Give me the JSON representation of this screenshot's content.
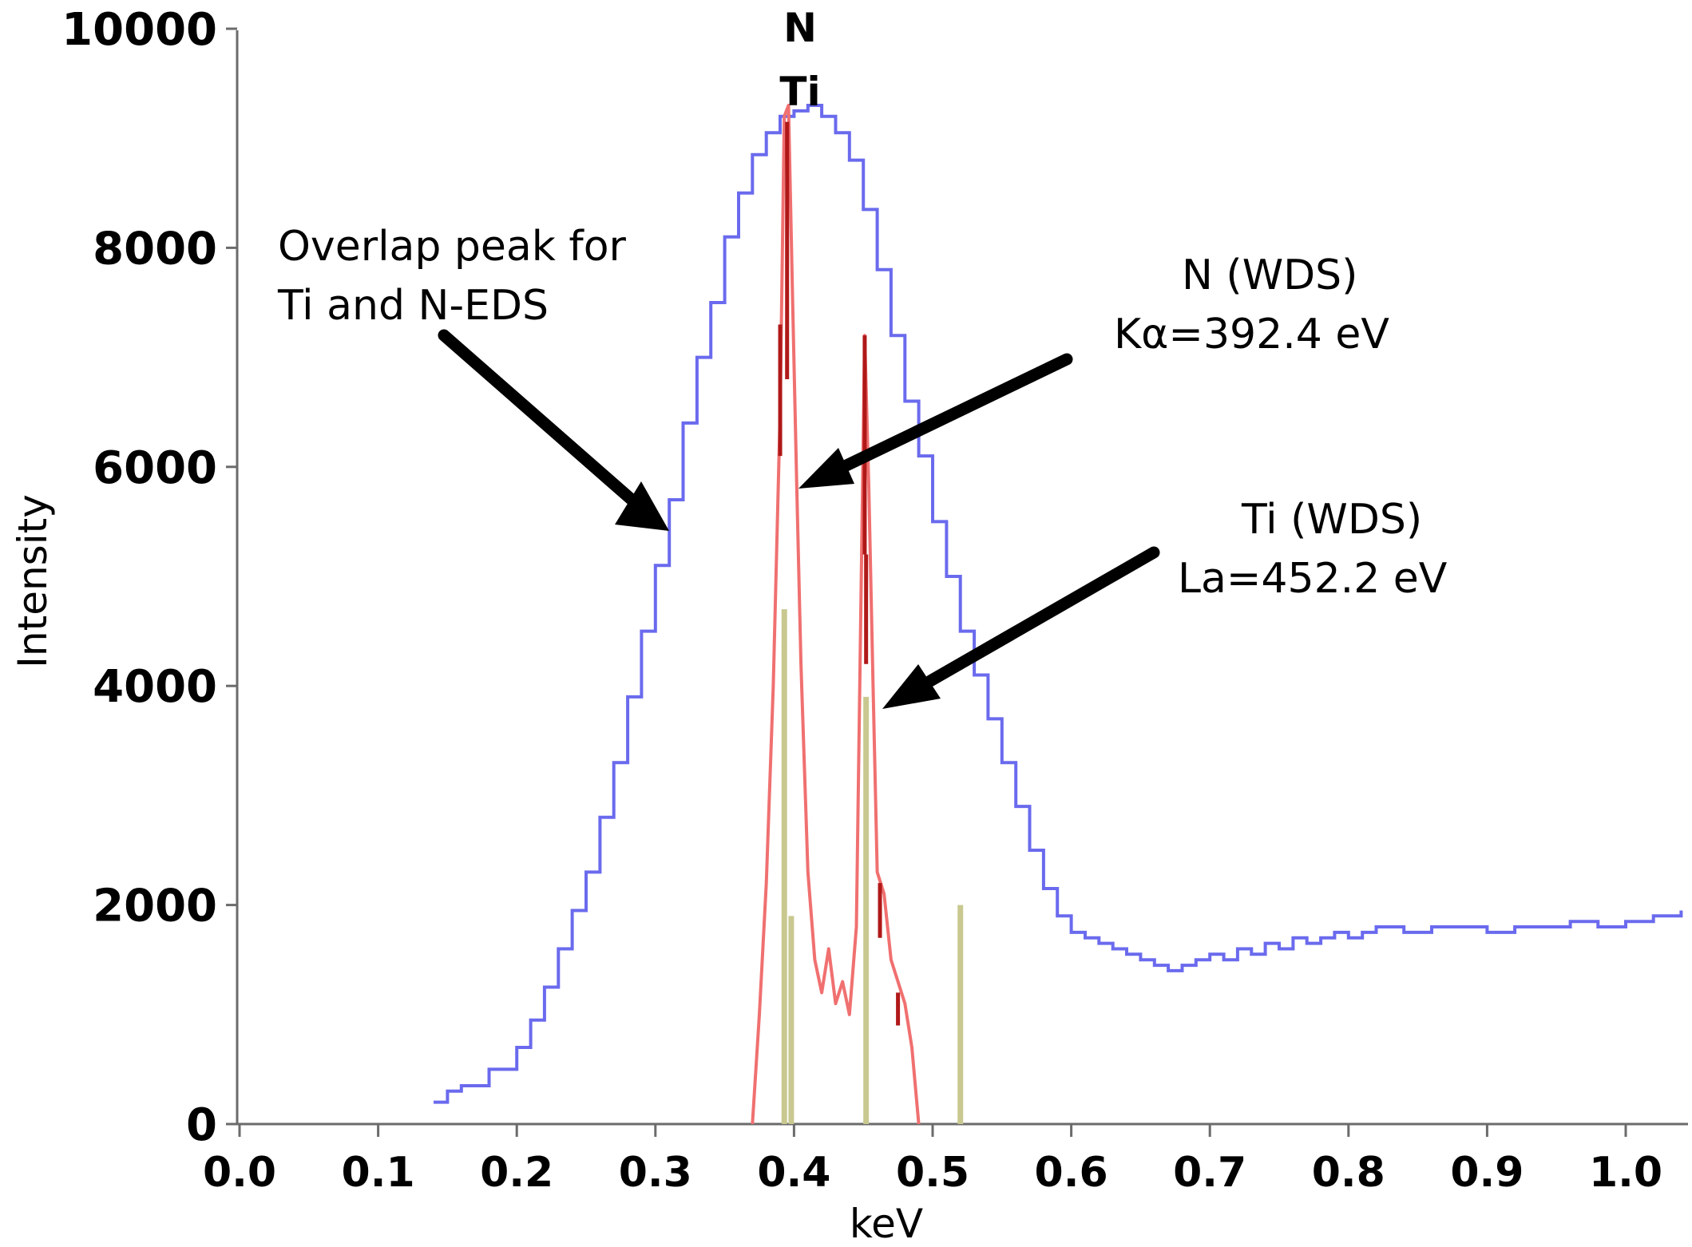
{
  "chart_data": {
    "type": "line",
    "title": "",
    "xlabel": "keV",
    "ylabel": "Intensity",
    "xlim": [
      0.0,
      1.04
    ],
    "ylim": [
      0,
      10000
    ],
    "x_ticks": [
      "0.0",
      "0.1",
      "0.2",
      "0.3",
      "0.4",
      "0.5",
      "0.6",
      "0.7",
      "0.8",
      "0.9",
      "1.0"
    ],
    "y_ticks": [
      "0",
      "2000",
      "4000",
      "6000",
      "8000",
      "10000"
    ],
    "colors": {
      "eds": "#6a6aee",
      "wds": "#f07070",
      "wds_dark": "#b01818",
      "ref_lines": "#c8c890",
      "arrow": "#000000"
    },
    "series": [
      {
        "name": "EDS",
        "x": [
          0.14,
          0.15,
          0.16,
          0.18,
          0.2,
          0.21,
          0.22,
          0.23,
          0.24,
          0.25,
          0.26,
          0.27,
          0.28,
          0.29,
          0.3,
          0.31,
          0.32,
          0.33,
          0.34,
          0.35,
          0.36,
          0.37,
          0.38,
          0.39,
          0.4,
          0.41,
          0.42,
          0.43,
          0.44,
          0.45,
          0.46,
          0.47,
          0.48,
          0.49,
          0.5,
          0.51,
          0.52,
          0.53,
          0.54,
          0.55,
          0.56,
          0.57,
          0.58,
          0.59,
          0.6,
          0.61,
          0.62,
          0.63,
          0.64,
          0.65,
          0.66,
          0.67,
          0.68,
          0.69,
          0.7,
          0.71,
          0.72,
          0.73,
          0.74,
          0.75,
          0.76,
          0.77,
          0.78,
          0.79,
          0.8,
          0.81,
          0.82,
          0.84,
          0.86,
          0.88,
          0.9,
          0.92,
          0.94,
          0.96,
          0.98,
          1.0,
          1.02,
          1.04
        ],
        "values": [
          200,
          300,
          350,
          500,
          700,
          950,
          1250,
          1600,
          1950,
          2300,
          2800,
          3300,
          3900,
          4500,
          5100,
          5700,
          6400,
          7000,
          7500,
          8100,
          8500,
          8850,
          9050,
          9200,
          9250,
          9300,
          9200,
          9050,
          8800,
          8350,
          7800,
          7200,
          6600,
          6100,
          5500,
          5000,
          4500,
          4100,
          3700,
          3300,
          2900,
          2500,
          2150,
          1900,
          1750,
          1700,
          1650,
          1600,
          1550,
          1500,
          1450,
          1400,
          1450,
          1500,
          1550,
          1500,
          1600,
          1550,
          1650,
          1600,
          1700,
          1650,
          1700,
          1750,
          1700,
          1750,
          1800,
          1750,
          1800,
          1800,
          1750,
          1800,
          1800,
          1850,
          1800,
          1850,
          1900,
          1950
        ]
      },
      {
        "name": "WDS",
        "x": [
          0.37,
          0.375,
          0.38,
          0.385,
          0.39,
          0.393,
          0.396,
          0.399,
          0.402,
          0.405,
          0.41,
          0.415,
          0.42,
          0.425,
          0.43,
          0.435,
          0.44,
          0.445,
          0.448,
          0.451,
          0.454,
          0.457,
          0.46,
          0.465,
          0.47,
          0.475,
          0.48,
          0.485,
          0.49
        ],
        "values": [
          0,
          1000,
          2200,
          4000,
          6500,
          9200,
          9300,
          7500,
          5800,
          4200,
          2300,
          1500,
          1200,
          1600,
          1100,
          1300,
          1000,
          1800,
          4500,
          7200,
          5800,
          4000,
          2300,
          2100,
          1500,
          1300,
          1100,
          700,
          0
        ]
      }
    ],
    "reference_lines": [
      {
        "x": 0.393,
        "value": 4700
      },
      {
        "x": 0.398,
        "value": 1900
      },
      {
        "x": 0.452,
        "value": 3900
      },
      {
        "x": 0.52,
        "value": 2000
      }
    ],
    "peak_labels": [
      "N",
      "Ti"
    ],
    "annotations": [
      {
        "lines": [
          "Overlap peak for",
          "Ti and N-EDS"
        ]
      },
      {
        "lines": [
          "N (WDS)",
          "Kα=392.4 eV"
        ]
      },
      {
        "lines": [
          "Ti (WDS)",
          "La=452.2 eV"
        ]
      }
    ]
  }
}
